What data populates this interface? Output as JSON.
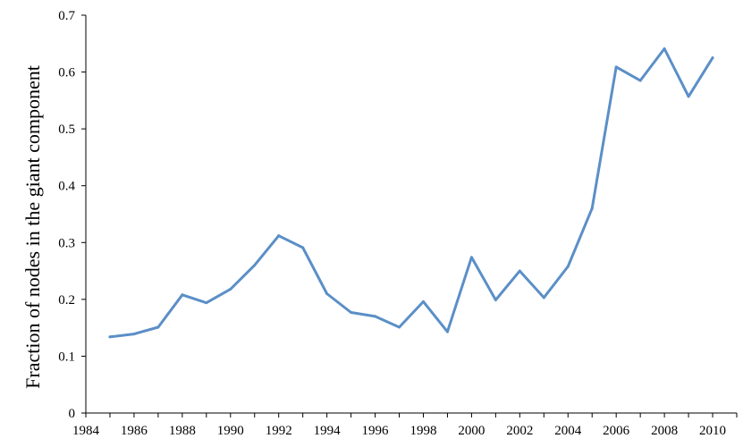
{
  "chart_data": {
    "type": "line",
    "title": "",
    "xlabel": "",
    "ylabel": "Fraction of nodes in the giant component",
    "xlim": [
      1984,
      2011
    ],
    "ylim": [
      0,
      0.7
    ],
    "x_ticks": [
      "1984",
      "1986",
      "1988",
      "1990",
      "1992",
      "1994",
      "1996",
      "1998",
      "2000",
      "2002",
      "2004",
      "2006",
      "2008",
      "2010"
    ],
    "y_ticks": [
      "0",
      "0.1",
      "0.2",
      "0.3",
      "0.4",
      "0.5",
      "0.6",
      "0.7"
    ],
    "grid": false,
    "legend": "none",
    "series": [
      {
        "color": "#5b8fc7",
        "points": [
          {
            "x": 1985,
            "y": 0.134
          },
          {
            "x": 1986,
            "y": 0.139
          },
          {
            "x": 1987,
            "y": 0.151
          },
          {
            "x": 1988,
            "y": 0.208
          },
          {
            "x": 1989,
            "y": 0.194
          },
          {
            "x": 1990,
            "y": 0.218
          },
          {
            "x": 1991,
            "y": 0.26
          },
          {
            "x": 1992,
            "y": 0.312
          },
          {
            "x": 1993,
            "y": 0.291
          },
          {
            "x": 1994,
            "y": 0.21
          },
          {
            "x": 1995,
            "y": 0.177
          },
          {
            "x": 1996,
            "y": 0.17
          },
          {
            "x": 1997,
            "y": 0.151
          },
          {
            "x": 1998,
            "y": 0.196
          },
          {
            "x": 1999,
            "y": 0.143
          },
          {
            "x": 2000,
            "y": 0.274
          },
          {
            "x": 2001,
            "y": 0.199
          },
          {
            "x": 2002,
            "y": 0.25
          },
          {
            "x": 2003,
            "y": 0.203
          },
          {
            "x": 2004,
            "y": 0.258
          },
          {
            "x": 2005,
            "y": 0.36
          },
          {
            "x": 2006,
            "y": 0.609
          },
          {
            "x": 2007,
            "y": 0.585
          },
          {
            "x": 2008,
            "y": 0.641
          },
          {
            "x": 2009,
            "y": 0.557
          },
          {
            "x": 2010,
            "y": 0.625
          }
        ]
      }
    ]
  }
}
